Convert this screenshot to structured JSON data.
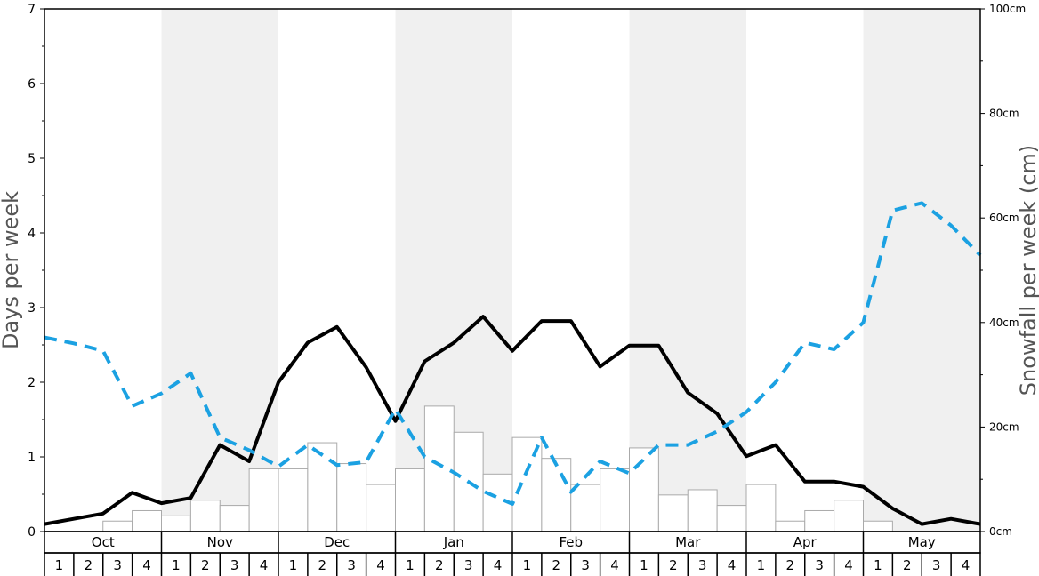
{
  "chart_data": {
    "type": "bar",
    "months": [
      "Oct",
      "Nov",
      "Dec",
      "Jan",
      "Feb",
      "Mar",
      "Apr",
      "May"
    ],
    "week_labels": [
      "1",
      "2",
      "3",
      "4"
    ],
    "ylabel_left": "Days per week",
    "ylabel_right": "Snowfall per week (cm)",
    "ylim_left": [
      0,
      7
    ],
    "yticks_left": [
      0,
      1,
      2,
      3,
      4,
      5,
      6,
      7
    ],
    "ylim_right": [
      0,
      100
    ],
    "yticks_right": [
      "0cm",
      "20cm",
      "40cm",
      "60cm",
      "80cm",
      "100cm"
    ],
    "alternate_month_shading": true,
    "colors": {
      "bars_fill": "#ffffff",
      "bars_stroke": "#aaaaaa",
      "shade": "#f0f0f0",
      "solid_line": "#000000",
      "dashed_line": "#1ba1e2"
    },
    "series": [
      {
        "type": "bar",
        "axis": "right",
        "values": [
          0,
          0,
          2,
          4,
          3,
          6,
          5,
          12,
          12,
          17,
          13,
          9,
          12,
          24,
          19,
          11,
          18,
          14,
          9,
          12,
          16,
          7,
          8,
          5,
          9,
          2,
          4,
          6,
          2,
          0,
          0,
          0
        ]
      },
      {
        "type": "line",
        "axis": "left",
        "style": "solid",
        "values": [
          0.1,
          0.17,
          0.24,
          0.52,
          0.38,
          0.45,
          1.16,
          0.94,
          2.0,
          2.53,
          2.74,
          2.2,
          1.48,
          2.28,
          2.53,
          2.88,
          2.42,
          2.82,
          2.82,
          2.21,
          2.49,
          2.49,
          1.86,
          1.58,
          1.01,
          1.16,
          0.67,
          0.67,
          0.6,
          0.31,
          0.1,
          0.17,
          0.1
        ]
      },
      {
        "type": "line",
        "axis": "left",
        "style": "dashed",
        "values": [
          2.6,
          2.52,
          2.42,
          1.68,
          1.85,
          2.12,
          1.26,
          1.09,
          0.87,
          1.16,
          0.89,
          0.93,
          1.64,
          1.0,
          0.79,
          0.54,
          0.37,
          1.26,
          0.53,
          0.94,
          0.78,
          1.16,
          1.16,
          1.34,
          1.6,
          2.0,
          2.53,
          2.44,
          2.8,
          4.3,
          4.4,
          4.1,
          3.7
        ]
      }
    ]
  }
}
